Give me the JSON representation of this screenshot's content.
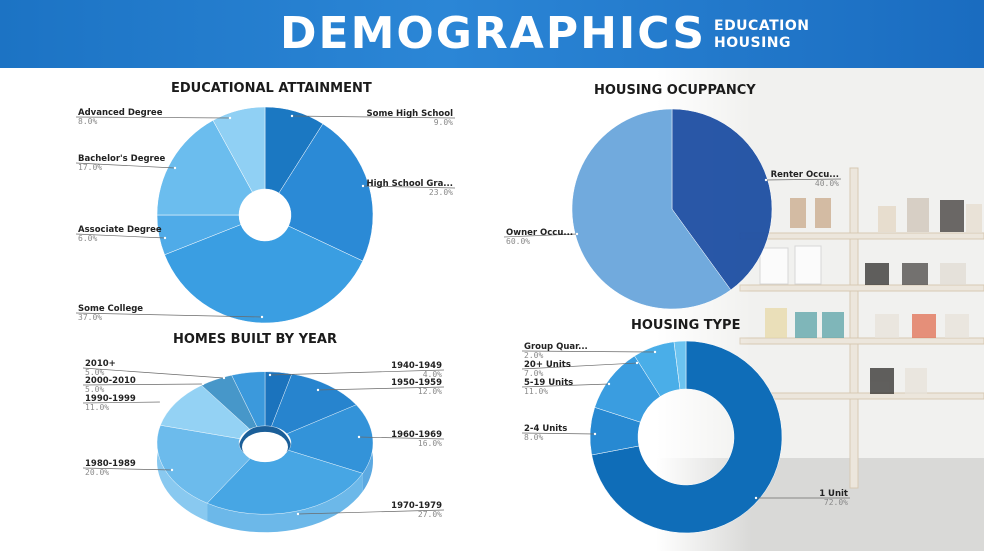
{
  "header": {
    "title": "DEMOGRAPHICS",
    "subtitle_line1": "EDUCATION",
    "subtitle_line2": "HOUSING"
  },
  "colors": {
    "header": "#1f78c8",
    "ring_dark": "#1565a8",
    "ring_light": "#a9d6f3"
  },
  "chart_data": [
    {
      "type": "pie",
      "style": "donut",
      "title": "EDUCATIONAL ATTAINMENT",
      "slices": [
        {
          "label": "Some High School",
          "value": 9.0,
          "pct_label": "9.0%",
          "color": "#1b78c2"
        },
        {
          "label": "High School Gra...",
          "value": 23.0,
          "pct_label": "23.0%",
          "color": "#2b8ad6"
        },
        {
          "label": "Some College",
          "value": 37.0,
          "pct_label": "37.0%",
          "color": "#3a9ee2"
        },
        {
          "label": "Associate Degree",
          "value": 6.0,
          "pct_label": "6.0%",
          "color": "#4fabe8"
        },
        {
          "label": "Bachelor's Degree",
          "value": 17.0,
          "pct_label": "17.0%",
          "color": "#6bbdee"
        },
        {
          "label": "Advanced Degree",
          "value": 8.0,
          "pct_label": "8.0%",
          "color": "#90d0f4"
        }
      ]
    },
    {
      "type": "pie",
      "title": "HOUSING OCUPPANCY",
      "slices": [
        {
          "label": "Renter Occu...",
          "value": 40.0,
          "pct_label": "40.0%",
          "color": "#1e4fa3"
        },
        {
          "label": "Owner Occu...",
          "value": 60.0,
          "pct_label": "60.0%",
          "color": "#6aa6dc"
        }
      ]
    },
    {
      "type": "pie",
      "style": "donut-3d",
      "title": "HOMES BUILT BY YEAR",
      "slices": [
        {
          "label": "1940-1949",
          "value": 4.0,
          "pct_label": "4.0%",
          "color": "#1b73bd"
        },
        {
          "label": "1950-1959",
          "value": 12.0,
          "pct_label": "12.0%",
          "color": "#2784ce"
        },
        {
          "label": "1960-1969",
          "value": 16.0,
          "pct_label": "16.0%",
          "color": "#3393d9"
        },
        {
          "label": "1970-1979",
          "value": 27.0,
          "pct_label": "27.0%",
          "color": "#47a6e4"
        },
        {
          "label": "1980-1989",
          "value": 20.0,
          "pct_label": "20.0%",
          "color": "#6cbbec"
        },
        {
          "label": "1990-1999",
          "value": 11.0,
          "pct_label": "11.0%",
          "color": "#94d2f4"
        },
        {
          "label": "2000-2010",
          "value": 5.0,
          "pct_label": "5.0%",
          "color": "#4797c9"
        },
        {
          "label": "2010+",
          "value": 5.0,
          "pct_label": "5.0%",
          "color": "#3b99dc"
        }
      ]
    },
    {
      "type": "pie",
      "style": "donut",
      "title": "HOUSING TYPE",
      "slices": [
        {
          "label": "1 Unit",
          "value": 72.0,
          "pct_label": "72.0%",
          "color": "#0f6db8"
        },
        {
          "label": "2-4 Units",
          "value": 8.0,
          "pct_label": "8.0%",
          "color": "#2789d2"
        },
        {
          "label": "5-19 Units",
          "value": 11.0,
          "pct_label": "11.0%",
          "color": "#3a9de0"
        },
        {
          "label": "20+ Units",
          "value": 7.0,
          "pct_label": "7.0%",
          "color": "#4aaee8"
        },
        {
          "label": "Group Quar...",
          "value": 2.0,
          "pct_label": "2.0%",
          "color": "#6cc3f0"
        }
      ]
    }
  ]
}
